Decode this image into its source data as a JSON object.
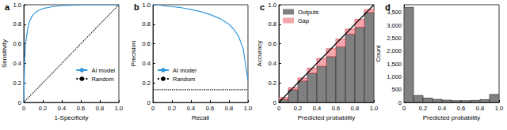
{
  "chart_data": [
    {
      "type": "line",
      "title": "a",
      "x_label": "1-Specificity",
      "y_label": "Sensitivity",
      "xlim": [
        0,
        1
      ],
      "ylim": [
        0,
        1
      ],
      "xticks": [
        0,
        0.2,
        0.4,
        0.6,
        0.8,
        {
          "value": 1,
          "label": "1.0"
        }
      ],
      "yticks": [
        0,
        0.2,
        0.4,
        0.6,
        0.8,
        {
          "value": 1,
          "label": "1.0"
        }
      ],
      "legend": "lower right",
      "series": [
        {
          "name": "AI model",
          "color": "#3399dd",
          "line_style": "solid",
          "x": [
            0,
            0.01,
            0.02,
            0.04,
            0.06,
            0.08,
            0.1,
            0.15,
            0.2,
            0.3,
            0.4,
            0.5,
            0.6,
            0.8,
            1.0
          ],
          "values": [
            0,
            0.45,
            0.6,
            0.75,
            0.83,
            0.87,
            0.9,
            0.94,
            0.96,
            0.98,
            0.99,
            0.995,
            1.0,
            1.0,
            1.0
          ]
        },
        {
          "name": "Random",
          "color": "#000000",
          "line_style": "dotted",
          "x": [
            0,
            1
          ],
          "values": [
            0,
            1
          ]
        }
      ]
    },
    {
      "type": "line",
      "title": "b",
      "x_label": "Recall",
      "y_label": "Precision",
      "xlim": [
        0,
        1
      ],
      "ylim": [
        0,
        1
      ],
      "xticks": [
        0,
        0.2,
        0.4,
        0.6,
        0.8,
        {
          "value": 1,
          "label": "1.0"
        }
      ],
      "yticks": [
        0,
        0.2,
        0.4,
        0.6,
        0.8,
        {
          "value": 1,
          "label": "1.0"
        }
      ],
      "legend": "lower left",
      "series": [
        {
          "name": "AI model",
          "color": "#3399dd",
          "line_style": "solid",
          "x": [
            0,
            0.05,
            0.1,
            0.2,
            0.3,
            0.4,
            0.5,
            0.6,
            0.7,
            0.8,
            0.85,
            0.9,
            0.95,
            1.0
          ],
          "values": [
            1.0,
            1.0,
            0.99,
            0.98,
            0.97,
            0.95,
            0.93,
            0.9,
            0.86,
            0.8,
            0.75,
            0.68,
            0.55,
            0.22
          ]
        },
        {
          "name": "Random",
          "color": "#000000",
          "line_style": "dotted",
          "x": [
            0,
            1
          ],
          "values": [
            0.13,
            0.13
          ]
        }
      ]
    },
    {
      "type": "bar",
      "title": "c",
      "x_label": "Predicted probability",
      "y_label": "Accuracy",
      "xlim": [
        0,
        1
      ],
      "ylim": [
        0,
        1
      ],
      "xticks": [
        0,
        0.2,
        0.4,
        0.6,
        0.8,
        {
          "value": 1,
          "label": "1.0"
        }
      ],
      "yticks": [
        0,
        0.2,
        0.4,
        0.6,
        0.8,
        {
          "value": 1,
          "label": "1.0"
        }
      ],
      "stacked": true,
      "legend": "upper left",
      "bins": [
        0,
        0.1,
        0.2,
        0.3,
        0.4,
        0.5,
        0.6,
        0.7,
        0.8,
        0.9,
        1.0
      ],
      "series": [
        {
          "name": "Outputs",
          "color": "#808080",
          "values": [
            0.03,
            0.13,
            0.22,
            0.3,
            0.37,
            0.47,
            0.57,
            0.7,
            0.77,
            0.92
          ]
        },
        {
          "name": "Gap",
          "color": "#f4a6ad",
          "values": [
            0.02,
            0.02,
            0.03,
            0.05,
            0.08,
            0.08,
            0.08,
            0.05,
            0.08,
            0.03
          ]
        },
        {
          "type": "line",
          "color": "#000000",
          "line_style": "solid",
          "x": [
            0,
            1
          ],
          "values": [
            0,
            1
          ]
        }
      ]
    },
    {
      "type": "bar",
      "title": "d",
      "x_label": "Predicted probability",
      "y_label": "Count",
      "xlim": [
        0,
        1
      ],
      "ylim": [
        0,
        3800
      ],
      "xticks": [
        0,
        0.2,
        0.4,
        0.6,
        0.8,
        {
          "value": 1,
          "label": "1.0"
        }
      ],
      "yticks": [
        0,
        500,
        {
          "value": 1000,
          "label": "1,000"
        },
        {
          "value": 1500,
          "label": "1,500"
        },
        {
          "value": 2000,
          "label": "2,000"
        },
        {
          "value": 2500,
          "label": "2,500"
        },
        {
          "value": 3000,
          "label": "3,000"
        },
        {
          "value": 3500,
          "label": "3,500"
        }
      ],
      "color": "#808080",
      "bins": [
        0,
        0.1,
        0.2,
        0.3,
        0.4,
        0.5,
        0.6,
        0.7,
        0.8,
        0.9,
        1.0
      ],
      "values": [
        3700,
        270,
        170,
        120,
        90,
        70,
        70,
        80,
        110,
        310
      ]
    }
  ]
}
